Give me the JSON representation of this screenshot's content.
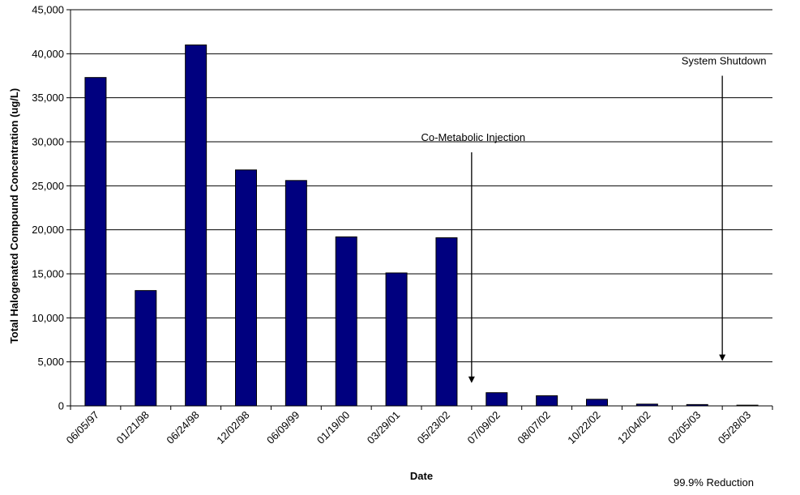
{
  "chart_data": {
    "type": "bar",
    "title": "",
    "xlabel": "Date",
    "ylabel": "Total Halogenated Compound Concentration (ug/L)",
    "categories": [
      "06/05/97",
      "01/21/98",
      "06/24/98",
      "12/02/98",
      "06/09/99",
      "01/19/00",
      "03/29/01",
      "05/23/02",
      "07/09/02",
      "08/07/02",
      "10/22/02",
      "12/04/02",
      "02/05/03",
      "05/28/03"
    ],
    "values": [
      37300,
      13100,
      41000,
      26800,
      25600,
      19200,
      15100,
      19100,
      1500,
      1150,
      750,
      200,
      150,
      80
    ],
    "ylim": [
      0,
      45000
    ],
    "yticks": [
      0,
      5000,
      10000,
      15000,
      20000,
      25000,
      30000,
      35000,
      40000,
      45000
    ],
    "ytick_labels": [
      "0",
      "5,000",
      "10,000",
      "15,000",
      "20,000",
      "25,000",
      "30,000",
      "35,000",
      "40,000",
      "45,000"
    ],
    "grid": true,
    "bar_color": "#00007f",
    "annotations": [
      {
        "text": "Co-Metabolic Injection",
        "category_gap_after": "05/23/02",
        "arrow_from": 28800,
        "arrow_to": 2600
      },
      {
        "text": "System Shutdown",
        "category_gap_after": "02/05/03",
        "arrow_from": 37500,
        "arrow_to": 5100
      }
    ],
    "footnote": "99.9% Reduction"
  }
}
